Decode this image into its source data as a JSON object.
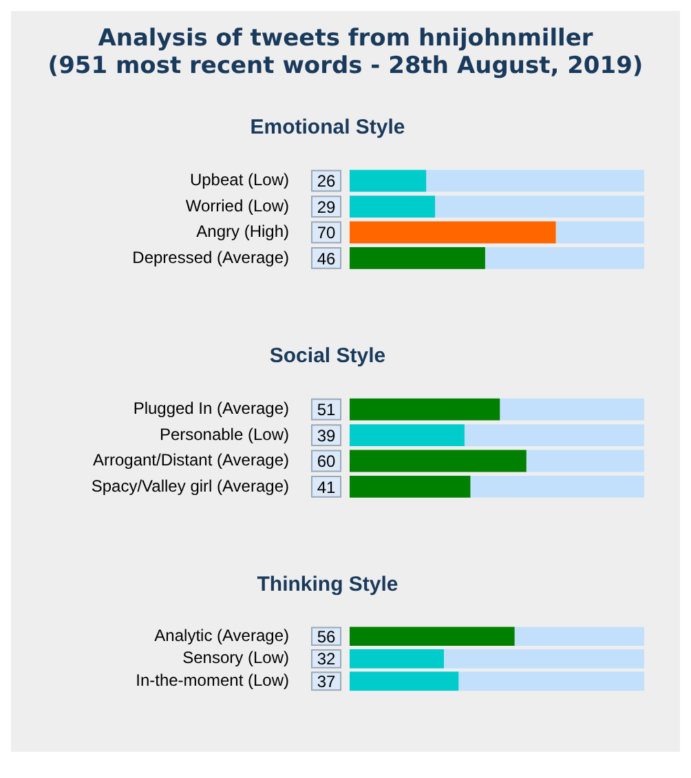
{
  "chart_data": [
    {
      "type": "bar",
      "orientation": "horizontal",
      "stacked": true,
      "title": "Analysis of tweets from hnijohnmiller\n(951 most recent words - 28th August, 2019)",
      "subtitle": "Emotional Style",
      "categories": [
        "Upbeat (Low)",
        "Worried (Low)",
        "Angry (High)",
        "Depressed (Average)"
      ],
      "series": [
        {
          "values": [
            26,
            29,
            70,
            46
          ],
          "colors": [
            "#00cccc",
            "#00cccc",
            "#ff6600",
            "#008000"
          ],
          "value_labels": [
            "26",
            "29",
            "70",
            "46"
          ]
        },
        {
          "values": [
            74,
            71,
            30,
            54
          ],
          "color": "#c2e0fc"
        }
      ],
      "xlim": [
        0,
        100
      ],
      "tick_labels": "y"
    },
    {
      "type": "bar",
      "orientation": "horizontal",
      "stacked": true,
      "subtitle": "Social Style",
      "categories": [
        "Plugged In (Average)",
        "Personable (Low)",
        "Arrogant/Distant (Average)",
        "Spacy/Valley girl (Average)"
      ],
      "series": [
        {
          "values": [
            51,
            39,
            60,
            41
          ],
          "colors": [
            "#008000",
            "#00cccc",
            "#008000",
            "#008000"
          ],
          "value_labels": [
            "51",
            "39",
            "60",
            "41"
          ]
        },
        {
          "values": [
            49,
            61,
            40,
            59
          ],
          "color": "#c2e0fc"
        }
      ],
      "xlim": [
        0,
        100
      ],
      "tick_labels": "y"
    },
    {
      "type": "bar",
      "orientation": "horizontal",
      "stacked": true,
      "subtitle": "Thinking Style",
      "categories": [
        "Analytic (Average)",
        "Sensory (Low)",
        "In-the-moment (Low)"
      ],
      "series": [
        {
          "values": [
            56,
            32,
            37
          ],
          "colors": [
            "#008000",
            "#00cccc",
            "#00cccc"
          ],
          "value_labels": [
            "56",
            "32",
            "37"
          ]
        },
        {
          "values": [
            44,
            68,
            63
          ],
          "color": "#c2e0fc"
        }
      ],
      "xlim": [
        0,
        100
      ],
      "tick_labels": "y"
    }
  ]
}
